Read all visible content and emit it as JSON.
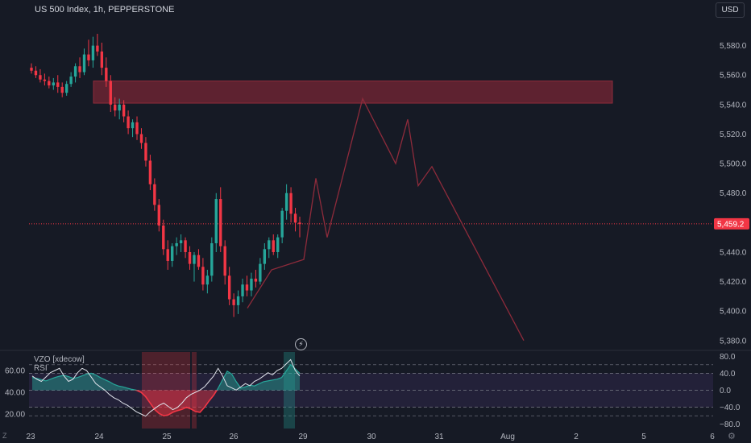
{
  "header": {
    "title": "US 500 Index, 1h, PEPPERSTONE",
    "currency": "USD"
  },
  "indicator": {
    "name": "VZO [xdecow]",
    "rsi_label": "RSI"
  },
  "controls": {
    "z_label": "Z",
    "gear_icon": "gear-icon",
    "bolt_icon": "lightning-icon"
  },
  "chart_data": [
    {
      "type": "candlestick",
      "title": "US 500 Index, 1h, PEPPERSTONE",
      "y_axis": {
        "ticks": [
          "5,580.0",
          "5,560.0",
          "5,540.0",
          "5,520.0",
          "5,500.0",
          "5,480.0",
          "5,440.0",
          "5,420.0",
          "5,400.0",
          "5,380.0"
        ],
        "ylim": [
          5375,
          5600
        ]
      },
      "x_axis": {
        "ticks": [
          "23",
          "24",
          "25",
          "26",
          "29",
          "30",
          "31",
          "Aug",
          "2",
          "5",
          "6"
        ]
      },
      "last_price": "5,459.2",
      "colors": {
        "up": "#26a69a",
        "down": "#f23645",
        "zone": "#6b2433",
        "projection": "#8e2b3b"
      },
      "candles_ohlc": [
        [
          5565,
          5568,
          5561,
          5563
        ],
        [
          5563,
          5566,
          5558,
          5560
        ],
        [
          5560,
          5564,
          5555,
          5557
        ],
        [
          5557,
          5561,
          5553,
          5556
        ],
        [
          5556,
          5559,
          5551,
          5553
        ],
        [
          5553,
          5558,
          5550,
          5555
        ],
        [
          5555,
          5560,
          5548,
          5552
        ],
        [
          5552,
          5555,
          5545,
          5548
        ],
        [
          5548,
          5556,
          5546,
          5554
        ],
        [
          5554,
          5562,
          5552,
          5559
        ],
        [
          5559,
          5568,
          5555,
          5566
        ],
        [
          5566,
          5572,
          5558,
          5562
        ],
        [
          5562,
          5578,
          5560,
          5574
        ],
        [
          5574,
          5584,
          5566,
          5570
        ],
        [
          5570,
          5586,
          5565,
          5580
        ],
        [
          5580,
          5588,
          5573,
          5576
        ],
        [
          5576,
          5582,
          5560,
          5565
        ],
        [
          5565,
          5572,
          5552,
          5556
        ],
        [
          5556,
          5560,
          5535,
          5540
        ],
        [
          5540,
          5545,
          5532,
          5536
        ],
        [
          5536,
          5544,
          5530,
          5540
        ],
        [
          5540,
          5543,
          5528,
          5532
        ],
        [
          5532,
          5536,
          5520,
          5524
        ],
        [
          5524,
          5530,
          5518,
          5528
        ],
        [
          5528,
          5532,
          5516,
          5520
        ],
        [
          5520,
          5524,
          5510,
          5514
        ],
        [
          5514,
          5518,
          5498,
          5502
        ],
        [
          5502,
          5506,
          5482,
          5486
        ],
        [
          5486,
          5490,
          5468,
          5472
        ],
        [
          5472,
          5476,
          5454,
          5458
        ],
        [
          5458,
          5462,
          5438,
          5442
        ],
        [
          5442,
          5448,
          5428,
          5434
        ],
        [
          5434,
          5446,
          5430,
          5444
        ],
        [
          5444,
          5450,
          5438,
          5446
        ],
        [
          5446,
          5452,
          5440,
          5448
        ],
        [
          5448,
          5450,
          5436,
          5440
        ],
        [
          5440,
          5444,
          5428,
          5432
        ],
        [
          5432,
          5440,
          5420,
          5438
        ],
        [
          5438,
          5442,
          5428,
          5430
        ],
        [
          5430,
          5436,
          5414,
          5418
        ],
        [
          5418,
          5428,
          5412,
          5424
        ],
        [
          5424,
          5450,
          5420,
          5446
        ],
        [
          5446,
          5480,
          5440,
          5476
        ],
        [
          5476,
          5484,
          5440,
          5444
        ],
        [
          5444,
          5448,
          5418,
          5424
        ],
        [
          5424,
          5430,
          5404,
          5408
        ],
        [
          5408,
          5412,
          5396,
          5404
        ],
        [
          5404,
          5414,
          5398,
          5410
        ],
        [
          5410,
          5422,
          5406,
          5418
        ],
        [
          5418,
          5424,
          5410,
          5414
        ],
        [
          5414,
          5426,
          5410,
          5422
        ],
        [
          5422,
          5428,
          5416,
          5420
        ],
        [
          5420,
          5436,
          5418,
          5432
        ],
        [
          5432,
          5446,
          5428,
          5442
        ],
        [
          5442,
          5450,
          5436,
          5448
        ],
        [
          5448,
          5452,
          5438,
          5440
        ],
        [
          5440,
          5452,
          5436,
          5450
        ],
        [
          5450,
          5470,
          5446,
          5468
        ],
        [
          5468,
          5486,
          5462,
          5480
        ],
        [
          5480,
          5484,
          5460,
          5466
        ],
        [
          5466,
          5470,
          5454,
          5460
        ],
        [
          5460,
          5464,
          5450,
          5459
        ]
      ],
      "resistance_zone": [
        5541,
        5556
      ],
      "projection_path": [
        [
          5402,
          0
        ],
        [
          5428,
          1
        ],
        [
          5435,
          2
        ],
        [
          5490,
          3
        ],
        [
          5450,
          4
        ],
        [
          5544,
          5
        ],
        [
          5500,
          6
        ],
        [
          5530,
          7
        ],
        [
          5485,
          8
        ],
        [
          5498,
          9
        ],
        [
          5380,
          10
        ]
      ]
    },
    {
      "type": "line",
      "title": "VZO [xdecow]",
      "y_axis_right": {
        "ticks": [
          "80.0",
          "40.0",
          "0.0",
          "−40.0",
          "−80.0"
        ],
        "ylim": [
          -90,
          90
        ]
      },
      "y_axis_left": {
        "ticks": [
          "60.00",
          "40.00",
          "20.00"
        ]
      },
      "series": [
        {
          "name": "VZO [xdecow]",
          "values": [
            30,
            28,
            25,
            22,
            26,
            30,
            33,
            35,
            32,
            28,
            30,
            34,
            38,
            40,
            36,
            30,
            25,
            20,
            14,
            10,
            8,
            5,
            2,
            0,
            -5,
            -15,
            -30,
            -45,
            -55,
            -60,
            -58,
            -52,
            -48,
            -45,
            -40,
            -44,
            -50,
            -52,
            -40,
            -25,
            -12,
            5,
            25,
            45,
            38,
            20,
            5,
            8,
            12,
            10,
            15,
            20,
            22,
            24,
            26,
            30,
            45,
            60,
            50,
            40
          ]
        },
        {
          "name": "RSI",
          "values": [
            55,
            52,
            50,
            54,
            58,
            60,
            62,
            55,
            50,
            52,
            58,
            62,
            60,
            54,
            48,
            45,
            42,
            38,
            35,
            33,
            30,
            28,
            25,
            22,
            20,
            18,
            22,
            25,
            28,
            30,
            27,
            24,
            26,
            30,
            35,
            38,
            40,
            42,
            45,
            50,
            55,
            62,
            55,
            46,
            44,
            42,
            45,
            48,
            46,
            50,
            52,
            55,
            58,
            56,
            60,
            62,
            66,
            70,
            60,
            55
          ]
        }
      ]
    }
  ]
}
